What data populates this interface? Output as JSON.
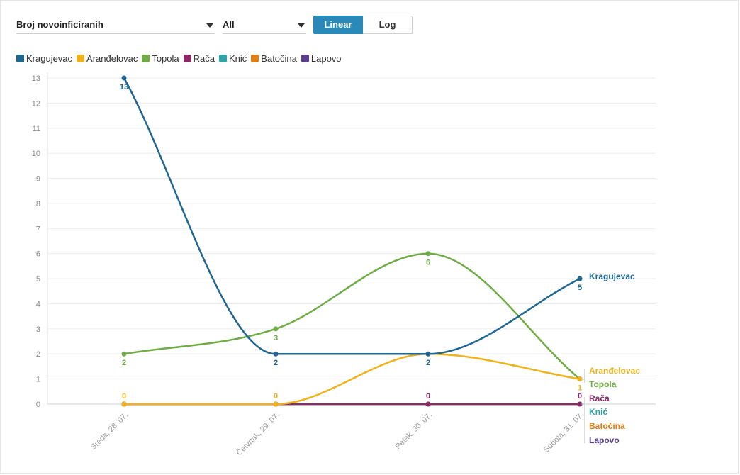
{
  "controls": {
    "metric_select": "Broj novoinficiranih",
    "region_select": "All",
    "scale_buttons": [
      "Linear",
      "Log"
    ],
    "active_scale": "Linear"
  },
  "chart_data": {
    "type": "line",
    "categories": [
      "Sreda, 28. 07.",
      "Četvrtak, 29. 07.",
      "Petak, 30. 07.",
      "Subota, 31. 07."
    ],
    "ylim": [
      0,
      13
    ],
    "yticks": [
      0,
      1,
      2,
      3,
      4,
      5,
      6,
      7,
      8,
      9,
      10,
      11,
      12,
      13
    ],
    "grid": true,
    "legend_position": "top-left",
    "series": [
      {
        "name": "Kragujevac",
        "color": "#1f6691",
        "values": [
          13,
          2,
          2,
          5
        ]
      },
      {
        "name": "Aranđelovac",
        "color": "#f0b21a",
        "values": [
          0,
          0,
          2,
          1
        ]
      },
      {
        "name": "Topola",
        "color": "#6fac45",
        "values": [
          2,
          3,
          6,
          1
        ]
      },
      {
        "name": "Rača",
        "color": "#8b2a66",
        "values": [
          0,
          0,
          0,
          0
        ]
      },
      {
        "name": "Knić",
        "color": "#2fa4a8",
        "values": [
          0,
          0,
          0,
          0
        ]
      },
      {
        "name": "Batočina",
        "color": "#e07d10",
        "values": [
          0,
          0,
          0,
          0
        ]
      },
      {
        "name": "Lapovo",
        "color": "#5a3f8e",
        "values": [
          0,
          0,
          0,
          0
        ]
      }
    ]
  }
}
